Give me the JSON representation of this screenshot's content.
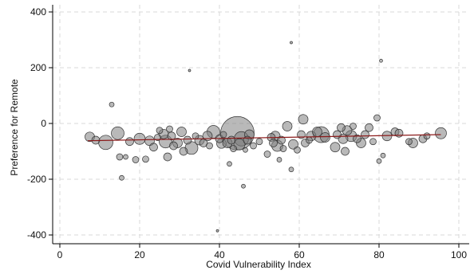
{
  "chart_data": {
    "type": "scatter",
    "title": "",
    "xlabel": "Covid Vulnerability Index",
    "ylabel": "Preference for Remote",
    "xlim": [
      0,
      100
    ],
    "ylim": [
      -400,
      400
    ],
    "xticks": [
      0,
      20,
      40,
      60,
      80,
      100
    ],
    "yticks": [
      -400,
      -200,
      0,
      200,
      400
    ],
    "grid": true,
    "legend": "none",
    "colors": {
      "marker_fill": "#808080",
      "marker_stroke": "#333333",
      "fit_line": "#8b1a1a",
      "grid": "#d9d9d9"
    },
    "points": [
      {
        "x": 7.5,
        "y": -48,
        "s": 6
      },
      {
        "x": 9,
        "y": -60,
        "s": 5
      },
      {
        "x": 11.5,
        "y": -68,
        "s": 9
      },
      {
        "x": 13,
        "y": 68,
        "s": 3
      },
      {
        "x": 14.5,
        "y": -35,
        "s": 8
      },
      {
        "x": 15,
        "y": -120,
        "s": 4
      },
      {
        "x": 15.5,
        "y": -195,
        "s": 3
      },
      {
        "x": 16.5,
        "y": -120,
        "s": 3
      },
      {
        "x": 17.5,
        "y": -65,
        "s": 5
      },
      {
        "x": 19,
        "y": -130,
        "s": 4
      },
      {
        "x": 20,
        "y": -55,
        "s": 7
      },
      {
        "x": 21.5,
        "y": -128,
        "s": 4
      },
      {
        "x": 22.5,
        "y": -62,
        "s": 6
      },
      {
        "x": 23.5,
        "y": -85,
        "s": 5
      },
      {
        "x": 24.5,
        "y": -50,
        "s": 4
      },
      {
        "x": 25,
        "y": -25,
        "s": 4
      },
      {
        "x": 26,
        "y": -38,
        "s": 6
      },
      {
        "x": 26.5,
        "y": -65,
        "s": 8
      },
      {
        "x": 27,
        "y": -120,
        "s": 5
      },
      {
        "x": 27.5,
        "y": -20,
        "s": 4
      },
      {
        "x": 28,
        "y": -45,
        "s": 5
      },
      {
        "x": 28.5,
        "y": -80,
        "s": 5
      },
      {
        "x": 29.5,
        "y": -70,
        "s": 6
      },
      {
        "x": 30.5,
        "y": -30,
        "s": 6
      },
      {
        "x": 31,
        "y": -100,
        "s": 5
      },
      {
        "x": 32,
        "y": -60,
        "s": 5
      },
      {
        "x": 32.5,
        "y": 190,
        "s": 1.5
      },
      {
        "x": 33,
        "y": -88,
        "s": 8
      },
      {
        "x": 34,
        "y": -45,
        "s": 4
      },
      {
        "x": 35,
        "y": -60,
        "s": 6
      },
      {
        "x": 36,
        "y": -70,
        "s": 5
      },
      {
        "x": 37,
        "y": -45,
        "s": 6
      },
      {
        "x": 37.5,
        "y": -80,
        "s": 4
      },
      {
        "x": 38.5,
        "y": -30,
        "s": 8
      },
      {
        "x": 39.5,
        "y": -385,
        "s": 1.5
      },
      {
        "x": 40,
        "y": -55,
        "s": 5
      },
      {
        "x": 40.5,
        "y": -72,
        "s": 6
      },
      {
        "x": 41,
        "y": -40,
        "s": 4
      },
      {
        "x": 42,
        "y": -70,
        "s": 6
      },
      {
        "x": 42.5,
        "y": -145,
        "s": 3
      },
      {
        "x": 43,
        "y": -60,
        "s": 5
      },
      {
        "x": 43.5,
        "y": -90,
        "s": 4
      },
      {
        "x": 44.5,
        "y": -35,
        "s": 21
      },
      {
        "x": 45,
        "y": -75,
        "s": 7
      },
      {
        "x": 45.5,
        "y": -55,
        "s": 9
      },
      {
        "x": 46,
        "y": -225,
        "s": 2.5
      },
      {
        "x": 46.5,
        "y": -95,
        "s": 3
      },
      {
        "x": 47,
        "y": -60,
        "s": 5
      },
      {
        "x": 47.5,
        "y": -40,
        "s": 6
      },
      {
        "x": 48.5,
        "y": -80,
        "s": 4
      },
      {
        "x": 50,
        "y": -65,
        "s": 4
      },
      {
        "x": 52,
        "y": -110,
        "s": 4
      },
      {
        "x": 53,
        "y": -50,
        "s": 5
      },
      {
        "x": 53.5,
        "y": -70,
        "s": 5
      },
      {
        "x": 54,
        "y": -45,
        "s": 6
      },
      {
        "x": 54.5,
        "y": -80,
        "s": 7
      },
      {
        "x": 55,
        "y": -130,
        "s": 3
      },
      {
        "x": 55.5,
        "y": -60,
        "s": 5
      },
      {
        "x": 56,
        "y": -90,
        "s": 4
      },
      {
        "x": 57,
        "y": -10,
        "s": 6
      },
      {
        "x": 58,
        "y": 290,
        "s": 1.5
      },
      {
        "x": 58,
        "y": -165,
        "s": 3
      },
      {
        "x": 58.5,
        "y": -75,
        "s": 6
      },
      {
        "x": 59.5,
        "y": -95,
        "s": 4
      },
      {
        "x": 60.5,
        "y": -40,
        "s": 5
      },
      {
        "x": 61,
        "y": 15,
        "s": 6
      },
      {
        "x": 61.5,
        "y": -70,
        "s": 5
      },
      {
        "x": 62.5,
        "y": -60,
        "s": 4
      },
      {
        "x": 63,
        "y": -45,
        "s": 6
      },
      {
        "x": 64.5,
        "y": -30,
        "s": 6
      },
      {
        "x": 65.5,
        "y": -40,
        "s": 10
      },
      {
        "x": 66.5,
        "y": -50,
        "s": 6
      },
      {
        "x": 69,
        "y": -85,
        "s": 6
      },
      {
        "x": 69.5,
        "y": -40,
        "s": 5
      },
      {
        "x": 70.5,
        "y": -15,
        "s": 5
      },
      {
        "x": 71,
        "y": -55,
        "s": 6
      },
      {
        "x": 71.5,
        "y": -100,
        "s": 5
      },
      {
        "x": 72,
        "y": -25,
        "s": 6
      },
      {
        "x": 73,
        "y": -45,
        "s": 7
      },
      {
        "x": 73.5,
        "y": -10,
        "s": 4
      },
      {
        "x": 74.5,
        "y": -55,
        "s": 5
      },
      {
        "x": 75.5,
        "y": -70,
        "s": 6
      },
      {
        "x": 76.5,
        "y": -40,
        "s": 5
      },
      {
        "x": 77.5,
        "y": -15,
        "s": 5
      },
      {
        "x": 78.5,
        "y": -65,
        "s": 4
      },
      {
        "x": 79.5,
        "y": 20,
        "s": 4
      },
      {
        "x": 80,
        "y": -135,
        "s": 3
      },
      {
        "x": 80.5,
        "y": 225,
        "s": 2
      },
      {
        "x": 81,
        "y": -115,
        "s": 3
      },
      {
        "x": 82,
        "y": -45,
        "s": 6
      },
      {
        "x": 84,
        "y": -30,
        "s": 5
      },
      {
        "x": 85,
        "y": -35,
        "s": 5
      },
      {
        "x": 87.5,
        "y": -65,
        "s": 4
      },
      {
        "x": 88.5,
        "y": -70,
        "s": 6
      },
      {
        "x": 91,
        "y": -55,
        "s": 5
      },
      {
        "x": 92,
        "y": -45,
        "s": 4
      },
      {
        "x": 95.5,
        "y": -35,
        "s": 7
      }
    ],
    "fit_line": {
      "x": [
        7,
        95.5
      ],
      "y": [
        -62,
        -40
      ]
    }
  }
}
